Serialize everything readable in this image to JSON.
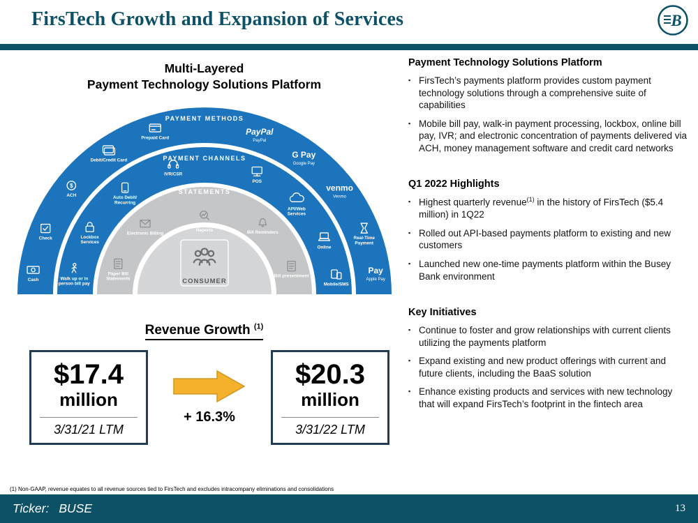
{
  "header": {
    "title": "FirsTech Growth and Expansion of Services",
    "logo_letter": "B"
  },
  "colors": {
    "teal": "#0d5166",
    "ring_blue": "#1C75BC",
    "ring_gray": "#C5C6C8",
    "inner_gray": "#D5D6D8",
    "arrow": "#F5B02C",
    "box_border": "#223C55"
  },
  "diagram": {
    "title_line1": "Multi-Layered",
    "title_line2": "Payment Technology Solutions Platform",
    "consumer_label": "CONSUMER",
    "rings": [
      {
        "name": "payment-methods",
        "label": "PAYMENT METHODS",
        "items": [
          {
            "label": "Prepaid Card",
            "icon": "card"
          },
          {
            "label": "Debit/Credit Card",
            "icon": "card2"
          },
          {
            "label": "ACH",
            "icon": "ach"
          },
          {
            "label": "Check",
            "icon": "check"
          },
          {
            "label": "Cash",
            "icon": "cash"
          },
          {
            "label": "PayPal",
            "logo": "PayPal",
            "logo_style": "italic",
            "icon": "logo"
          },
          {
            "label": "Google Pay",
            "logo": "G Pay",
            "icon": "logo"
          },
          {
            "label": "Venmo",
            "logo": "venmo",
            "icon": "logo"
          },
          {
            "label": "Real-Time\nPayment",
            "icon": "hourglass"
          },
          {
            "label": "Apple Pay",
            "logo": "Pay",
            "icon": "logo"
          }
        ]
      },
      {
        "name": "payment-channels",
        "label": "PAYMENT CHANNELS",
        "items": [
          {
            "label": "IVR/CSR",
            "icon": "headset"
          },
          {
            "label": "Auto Debit/\nRecurring",
            "icon": "phone"
          },
          {
            "label": "Lockbox\nServices",
            "icon": "lock"
          },
          {
            "label": "Walk up or in\nperson bill pay",
            "icon": "walk"
          },
          {
            "label": "POS",
            "icon": "pos"
          },
          {
            "label": "API/Web\nServices",
            "icon": "cloud"
          },
          {
            "label": "Online",
            "icon": "laptop"
          },
          {
            "label": "Mobile/SMS",
            "icon": "mobile"
          }
        ]
      },
      {
        "name": "statements",
        "label": "STATEMENTS",
        "items": [
          {
            "label": "Electronic Billing",
            "icon": "envelope"
          },
          {
            "label": "Paper Bill\nStatements",
            "icon": "doc"
          },
          {
            "label": "Consolidated\nReports",
            "icon": "report"
          },
          {
            "label": "Bill Reminders",
            "icon": "bell"
          },
          {
            "label": "Bill presentment",
            "icon": "doc"
          }
        ]
      }
    ]
  },
  "revenue": {
    "heading": "Revenue Growth ",
    "heading_sup": "(1)",
    "before": {
      "amount": "$17.4",
      "unit": "million",
      "period": "3/31/21 LTM"
    },
    "after": {
      "amount": "$20.3",
      "unit": "million",
      "period": "3/31/22 LTM"
    },
    "growth": "+ 16.3%"
  },
  "right_sections": [
    {
      "heading": "Payment Technology Solutions Platform",
      "bullets": [
        {
          "segments": [
            {
              "t": "FirsTech’s payments platform provides custom payment technology solutions through a comprehensive suite of capabilities"
            }
          ]
        },
        {
          "segments": [
            {
              "t": "Mobile bill pay, walk-in payment processing, lockbox, online bill pay, IVR; and electronic concentration of payments delivered via ACH, money management software and credit card networks"
            }
          ]
        }
      ]
    },
    {
      "heading": "Q1 2022 Highlights",
      "bullets": [
        {
          "segments": [
            {
              "t": "Highest quarterly revenue"
            },
            {
              "t": "(1)",
              "sup": true
            },
            {
              "t": " in the history of FirsTech ($5.4 million) in 1Q22"
            }
          ]
        },
        {
          "segments": [
            {
              "t": "Rolled out API-based payments platform to existing and new customers"
            }
          ]
        },
        {
          "segments": [
            {
              "t": "Launched new one-time payments platform within the Busey Bank environment"
            }
          ]
        }
      ]
    },
    {
      "heading": "Key Initiatives",
      "bullets": [
        {
          "segments": [
            {
              "t": "Continue to foster and grow relationships with current clients utilizing the payments platform"
            }
          ]
        },
        {
          "segments": [
            {
              "t": "Expand existing and new product offerings with current and future clients, including the BaaS solution"
            }
          ]
        },
        {
          "segments": [
            {
              "t": "Enhance existing products and services with new technology that will expand FirsTech’s footprint in the fintech area"
            }
          ]
        }
      ]
    }
  ],
  "footnote": "(1) Non-GAAP, revenue equates to all revenue sources tied to FirsTech and excludes intracompany eliminations and consolidations",
  "footer": {
    "ticker_label": "Ticker:",
    "ticker_value": "BUSE",
    "page": "13"
  }
}
